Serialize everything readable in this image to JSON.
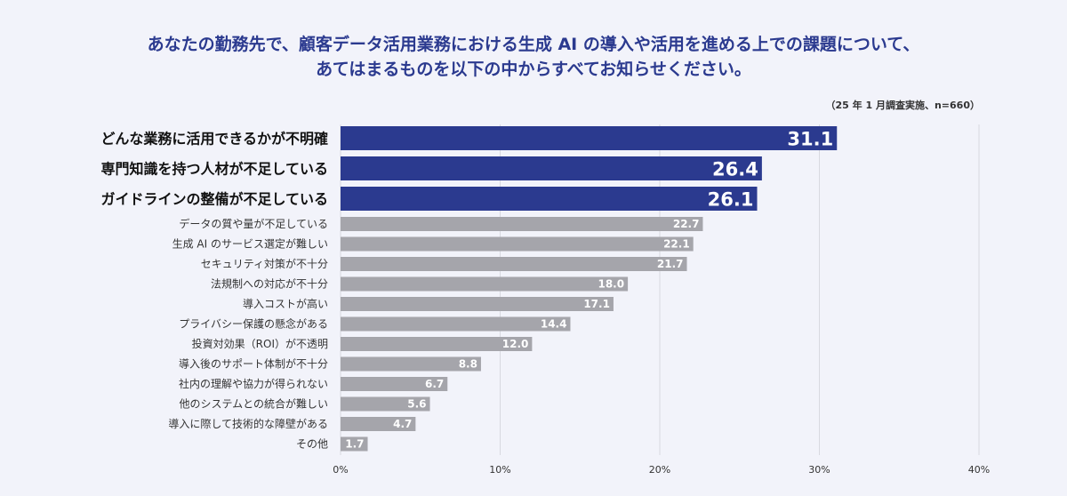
{
  "chart_data": {
    "type": "bar",
    "orientation": "horizontal",
    "title_line1": "あなたの勤務先で、顧客データ活用業務における生成 AI の導入や活用を進める上での課題について、",
    "title_line2": "あてはまるものを以下の中からすべてお知らせください。",
    "note": "（25 年 1 月調査実施、n=660）",
    "categories": [
      "どんな業務に活用できるかが不明確",
      "専門知識を持つ人材が不足している",
      "ガイドラインの整備が不足している",
      "データの質や量が不足している",
      "生成 AI のサービス選定が難しい",
      "セキュリティ対策が不十分",
      "法規制への対応が不十分",
      "導入コストが高い",
      "プライバシー保護の懸念がある",
      "投資対効果（ROI）が不透明",
      "導入後のサポート体制が不十分",
      "社内の理解や協力が得られない",
      "他のシステムとの統合が難しい",
      "導入に際して技術的な障壁がある",
      "その他"
    ],
    "values": [
      31.1,
      26.4,
      26.1,
      22.7,
      22.1,
      21.7,
      18.0,
      17.1,
      14.4,
      12.0,
      8.8,
      6.7,
      5.6,
      4.7,
      1.7
    ],
    "value_labels": [
      "31.1",
      "26.4",
      "26.1",
      "22.7",
      "22.1",
      "21.7",
      "18.0",
      "17.1",
      "14.4",
      "12.0",
      "8.8",
      "6.7",
      "5.6",
      "4.7",
      "1.7"
    ],
    "highlight_count": 3,
    "xlim": [
      0,
      40
    ],
    "ticks": [
      0,
      10,
      20,
      30,
      40
    ],
    "tick_labels": [
      "0%",
      "10%",
      "20%",
      "30%",
      "40%"
    ],
    "grid": true,
    "colors": {
      "highlight": "#2b3a8f",
      "normal": "#a5a5ab",
      "grid": "#d8d9e0",
      "background": "#f2f3fa"
    }
  }
}
